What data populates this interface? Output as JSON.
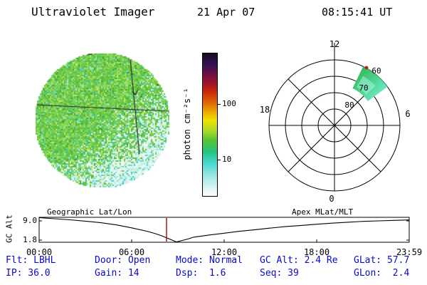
{
  "header": {
    "title": "Ultraviolet Imager",
    "date": "21 Apr 07",
    "time": "08:15:41 UT"
  },
  "disk": {
    "grid_color": "#1c1c1c",
    "palette": {
      "green": [
        "#58bb3c",
        "#63c443",
        "#6ecb49",
        "#79d14f",
        "#84d655",
        "#5fc046"
      ],
      "light": [
        "#9ddb58",
        "#aee262",
        "#bfe96f",
        "#8fd653"
      ],
      "cyan": [
        "#4fd2c0",
        "#6fdfd2",
        "#8de8de",
        "#3fc8b8"
      ],
      "pale": [
        "#d9f2ec",
        "#e8f8f4",
        "#f5fcfa",
        "#c8ece4",
        "#def4ef"
      ],
      "dark": [
        "#3f9e30",
        "#49a838"
      ]
    }
  },
  "colorbar": {
    "label": "photon cm⁻²s⁻¹",
    "ticks": [
      {
        "value": "100",
        "pos": 0.36
      },
      {
        "value": "10",
        "pos": 0.75
      }
    ]
  },
  "polar": {
    "hours": [
      "12",
      "18",
      "6",
      "0"
    ],
    "lats": [
      "60",
      "70",
      "80"
    ],
    "patch": {
      "angle_deg": [
        26,
        54
      ],
      "radial_rings": [
        "60",
        "70"
      ]
    }
  },
  "timeseries": {
    "ylabel": "GC Alt",
    "left_title": "Geographic Lat/Lon",
    "right_title": "Apex MLat/MLT",
    "yticks": [
      "9.0",
      "1.8"
    ],
    "xticks": [
      "00:00",
      "06:00",
      "12:00",
      "18:00",
      "23:59"
    ],
    "marker_time": 8.2625,
    "marker_color": "#bb0000",
    "points": [
      [
        0,
        10.2
      ],
      [
        1,
        9.8
      ],
      [
        2,
        9.4
      ],
      [
        3,
        8.9
      ],
      [
        4,
        8.3
      ],
      [
        5,
        7.5
      ],
      [
        6,
        6.4
      ],
      [
        7,
        5.1
      ],
      [
        7.5,
        4.3
      ],
      [
        8,
        3.3
      ],
      [
        8.5,
        2.1
      ],
      [
        8.9,
        1.1
      ],
      [
        9.3,
        1.7
      ],
      [
        9.7,
        2.3
      ],
      [
        10,
        2.9
      ],
      [
        11,
        3.7
      ],
      [
        12,
        4.4
      ],
      [
        13,
        5.1
      ],
      [
        14,
        5.7
      ],
      [
        15,
        6.3
      ],
      [
        16,
        6.9
      ],
      [
        17,
        7.3
      ],
      [
        18,
        7.75
      ],
      [
        19,
        8.15
      ],
      [
        20,
        8.5
      ],
      [
        21,
        8.8
      ],
      [
        22,
        9.0
      ],
      [
        23,
        9.2
      ],
      [
        24,
        9.35
      ]
    ]
  },
  "status": {
    "text_color": "#0a0acc",
    "rows": [
      [
        "Flt: LBHL",
        "Door: Open",
        "Mode: Normal",
        "GC Alt: 2.4 Re",
        "GLat: 57.7"
      ],
      [
        "IP: 36.0",
        "Gain: 14",
        "Dsp:  1.6",
        "Seq: 39",
        "GLon:  2.4"
      ]
    ]
  }
}
